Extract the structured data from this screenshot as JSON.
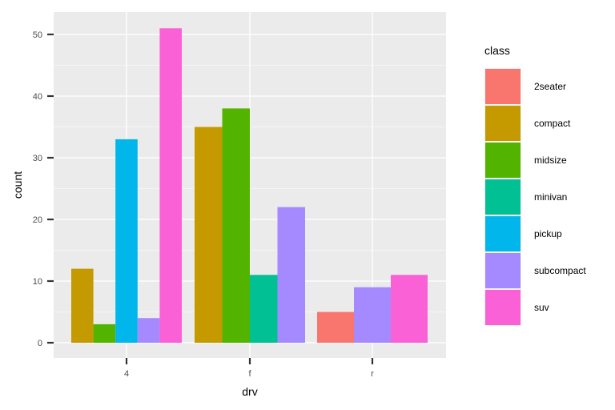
{
  "chart_data": {
    "type": "bar",
    "categories": [
      "4",
      "f",
      "r"
    ],
    "xlabel": "drv",
    "ylabel": "count",
    "ylim": [
      0,
      55
    ],
    "yticks": [
      0,
      10,
      20,
      30,
      40,
      50
    ],
    "grid": true,
    "legend_position": "right",
    "legend_title": "class",
    "series": [
      {
        "name": "2seater",
        "color": "#F8766D",
        "values": [
          null,
          null,
          5
        ]
      },
      {
        "name": "compact",
        "color": "#C49A00",
        "values": [
          12,
          35,
          null
        ]
      },
      {
        "name": "midsize",
        "color": "#53B400",
        "values": [
          3,
          38,
          null
        ]
      },
      {
        "name": "minivan",
        "color": "#00C094",
        "values": [
          null,
          11,
          null
        ]
      },
      {
        "name": "pickup",
        "color": "#00B6EB",
        "values": [
          33,
          null,
          null
        ]
      },
      {
        "name": "subcompact",
        "color": "#A58AFF",
        "values": [
          4,
          22,
          9
        ]
      },
      {
        "name": "suv",
        "color": "#FB61D7",
        "values": [
          51,
          null,
          11
        ]
      }
    ]
  }
}
